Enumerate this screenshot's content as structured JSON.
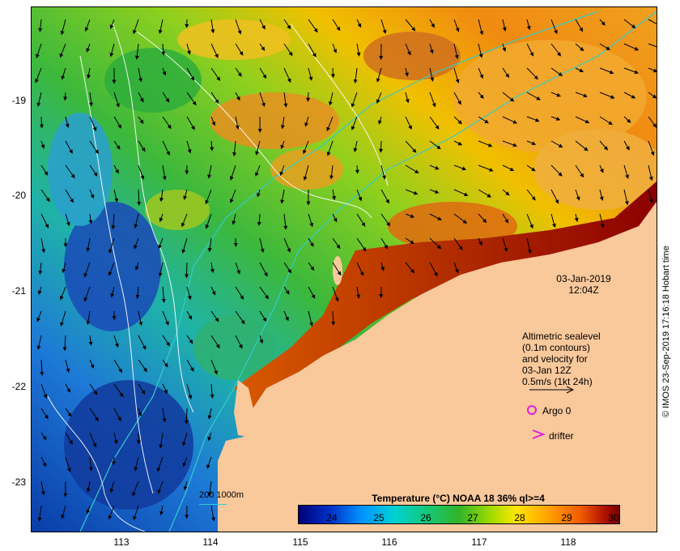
{
  "map": {
    "y_ticks": [
      "-19",
      "-20",
      "-21",
      "-22",
      "-23"
    ],
    "x_ticks": [
      "113",
      "114",
      "115",
      "116",
      "117",
      "118"
    ],
    "timestamp_date": "03-Jan-2019",
    "timestamp_time": "12:04Z",
    "legend_lines": [
      "Altimetric sealevel",
      "(0.1m contours)",
      "and velocity for",
      "03-Jan 12Z",
      "0.5m/s (1kt 24h)"
    ],
    "argo_label": "Argo 0",
    "drifter_label": "drifter",
    "depth_legend": "200  1000m",
    "credit": "© IMOS 23-Sep-2019 17:16:18 Hobart time",
    "colorbar_title": "Temperature (°C) NOAA 18 36% ql>=4",
    "colorbar_ticks": [
      "24",
      "25",
      "26",
      "27",
      "28",
      "29",
      "30"
    ],
    "colors": {
      "land": "#f9c89b",
      "isobath": "#33cccc",
      "argo": "#dd22dd",
      "drifter": "#dd22dd"
    }
  }
}
